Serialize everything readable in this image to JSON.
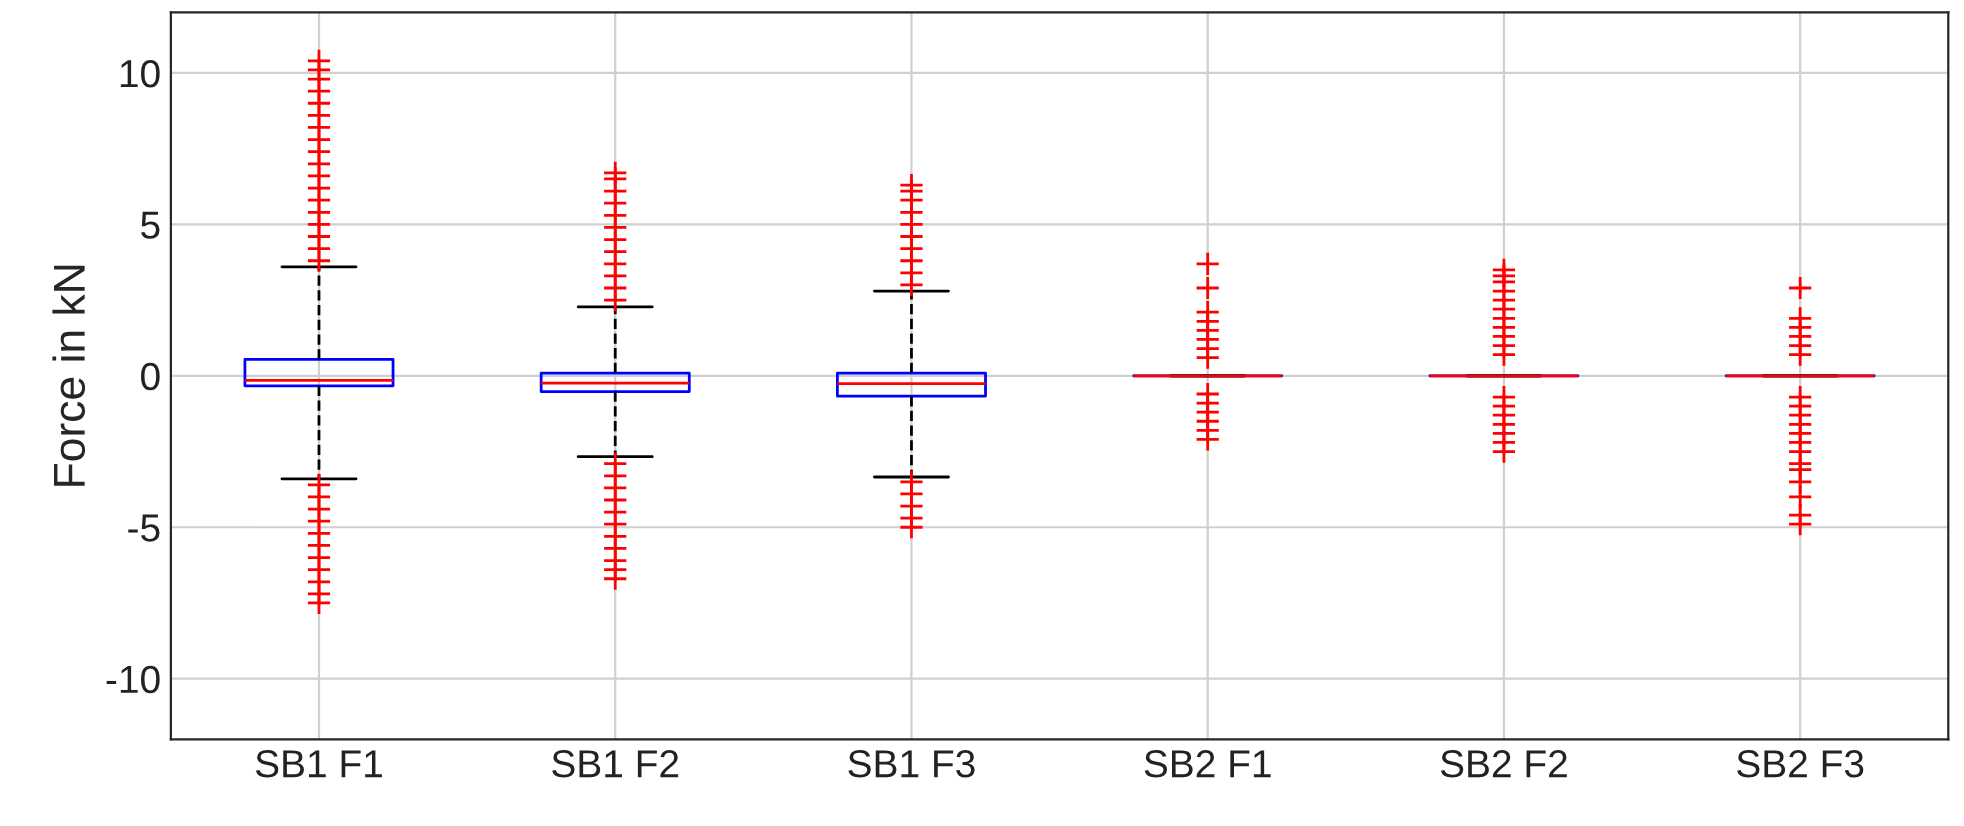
{
  "chart_data": {
    "type": "box",
    "ylabel": "Force in kN",
    "categories": [
      "SB1 F1",
      "SB1 F2",
      "SB1 F3",
      "SB2 F1",
      "SB2 F2",
      "SB2 F3"
    ],
    "boxes": [
      {
        "low": -3.4,
        "q1": -0.33,
        "median": -0.15,
        "q3": 0.54,
        "high": 3.6,
        "outliers": [
          3.8,
          4.2,
          4.6,
          5.0,
          5.4,
          5.8,
          6.2,
          6.6,
          7.0,
          7.4,
          7.8,
          8.2,
          8.6,
          9.0,
          9.4,
          9.8,
          10.1,
          10.4,
          -3.6,
          -4.0,
          -4.4,
          -4.8,
          -5.2,
          -5.6,
          -6.0,
          -6.4,
          -6.8,
          -7.2,
          -7.5
        ]
      },
      {
        "low": -2.67,
        "q1": -0.52,
        "median": -0.24,
        "q3": 0.09,
        "high": 2.28,
        "outliers": [
          2.5,
          2.9,
          3.3,
          3.7,
          4.1,
          4.5,
          4.9,
          5.3,
          5.7,
          6.1,
          6.5,
          6.7,
          -2.9,
          -3.3,
          -3.7,
          -4.1,
          -4.5,
          -4.9,
          -5.3,
          -5.7,
          -6.1,
          -6.4,
          -6.7
        ]
      },
      {
        "low": -3.34,
        "q1": -0.67,
        "median": -0.26,
        "q3": 0.09,
        "high": 2.8,
        "outliers": [
          3.0,
          3.4,
          3.8,
          4.2,
          4.6,
          5.0,
          5.4,
          5.8,
          6.1,
          6.3,
          -3.5,
          -3.9,
          -4.3,
          -4.7,
          -5.0
        ]
      },
      {
        "low": 0,
        "q1": 0,
        "median": 0,
        "q3": 0,
        "high": 0,
        "outliers": [
          3.7,
          2.9,
          2.1,
          1.8,
          1.5,
          1.2,
          0.9,
          0.6,
          -0.6,
          -0.9,
          -1.2,
          -1.5,
          -1.8,
          -2.1
        ]
      },
      {
        "low": 0,
        "q1": 0,
        "median": 0,
        "q3": 0,
        "high": 0,
        "outliers": [
          3.5,
          3.3,
          3.1,
          2.8,
          2.5,
          2.2,
          1.9,
          1.6,
          1.3,
          1.0,
          0.7,
          -0.7,
          -1.0,
          -1.3,
          -1.6,
          -1.9,
          -2.2,
          -2.5
        ]
      },
      {
        "low": 0,
        "q1": 0,
        "median": 0,
        "q3": 0,
        "high": 0,
        "outliers": [
          2.9,
          1.9,
          1.6,
          1.3,
          1.0,
          0.7,
          -0.7,
          -1.0,
          -1.3,
          -1.6,
          -1.9,
          -2.2,
          -2.5,
          -2.9,
          -3.1,
          -3.5,
          -4.0,
          -4.6,
          -4.9
        ]
      }
    ],
    "ylim": [
      -12,
      12
    ],
    "yticks": [
      -10,
      -5,
      0,
      5,
      10
    ],
    "grid": true
  }
}
